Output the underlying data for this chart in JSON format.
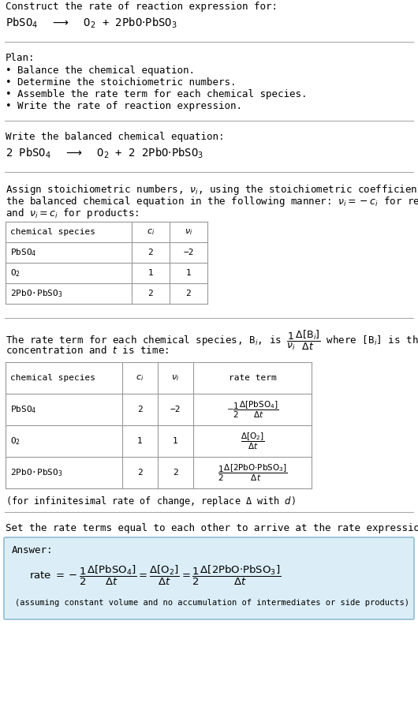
{
  "bg_color": "#ffffff",
  "text_color": "#000000",
  "title_line1": "Construct the rate of reaction expression for:",
  "plan_label": "Plan:",
  "plan_items": [
    "• Balance the chemical equation.",
    "• Determine the stoichiometric numbers.",
    "• Assemble the rate term for each chemical species.",
    "• Write the rate of reaction expression."
  ],
  "balanced_label": "Write the balanced chemical equation:",
  "stoich_intro_lines": [
    "Assign stoichiometric numbers, $\\nu_i$, using the stoichiometric coefficients, $c_i$, from",
    "the balanced chemical equation in the following manner: $\\nu_i = -c_i$ for reactants",
    "and $\\nu_i = c_i$ for products:"
  ],
  "table1_headers": [
    "chemical species",
    "$c_i$",
    "$\\nu_i$"
  ],
  "table1_rows": [
    [
      "PbSO$_4$",
      "2",
      "−2"
    ],
    [
      "O$_2$",
      "1",
      "1"
    ],
    [
      "2PbO·PbSO$_3$",
      "2",
      "2"
    ]
  ],
  "rate_intro_lines": [
    "The rate term for each chemical species, B$_i$, is $\\dfrac{1}{\\nu_i}\\dfrac{\\Delta[\\mathrm{B}_i]}{\\Delta t}$ where [B$_i$] is the amount",
    "concentration and $t$ is time:"
  ],
  "table2_headers": [
    "chemical species",
    "$c_i$",
    "$\\nu_i$",
    "rate term"
  ],
  "table2_rows": [
    [
      "PbSO$_4$",
      "2",
      "−2",
      "$-\\dfrac{1}{2}\\dfrac{\\Delta[\\mathrm{PbSO_4}]}{\\Delta t}$"
    ],
    [
      "O$_2$",
      "1",
      "1",
      "$\\dfrac{\\Delta[\\mathrm{O_2}]}{\\Delta t}$"
    ],
    [
      "2PbO·PbSO$_3$",
      "2",
      "2",
      "$\\dfrac{1}{2}\\dfrac{\\Delta[\\mathrm{2PbO{\\cdot}PbSO_3}]}{\\Delta t}$"
    ]
  ],
  "infinitesimal_note": "(for infinitesimal rate of change, replace Δ with $d$)",
  "set_equal_text": "Set the rate terms equal to each other to arrive at the rate expression:",
  "answer_label": "Answer:",
  "answer_bg": "#dbeef7",
  "answer_border": "#90bcd4",
  "answer_expr_parts": [
    "rate $= -\\dfrac{1}{2}\\dfrac{\\Delta[\\mathrm{PbSO_4}]}{\\Delta t} = \\dfrac{\\Delta[\\mathrm{O_2}]}{\\Delta t} = \\dfrac{1}{2}\\dfrac{\\Delta[\\mathrm{2PbO{\\cdot}PbSO_3}]}{\\Delta t}$"
  ],
  "assuming_note": "(assuming constant volume and no accumulation of intermediates or side products)",
  "font_size": 9.0,
  "mono_font": "DejaVu Sans Mono",
  "serif_font": "DejaVu Serif"
}
